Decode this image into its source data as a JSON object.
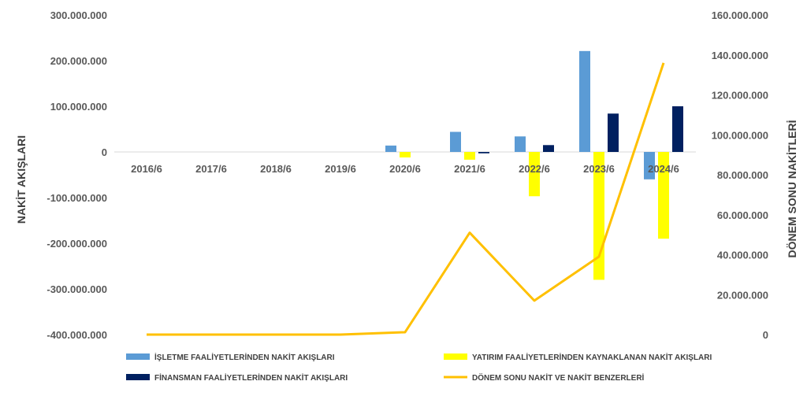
{
  "chart_data": {
    "type": "bar",
    "categories": [
      "2016/6",
      "2017/6",
      "2018/6",
      "2019/6",
      "2020/6",
      "2021/6",
      "2022/6",
      "2023/6",
      "2024/6"
    ],
    "series": [
      {
        "name": "İŞLETME FAALİYETLERİNDEN NAKİT AKIŞLARI",
        "type": "bar",
        "axis": "left",
        "color": "#5B9BD5",
        "values": [
          0,
          0,
          0,
          0,
          14000000,
          44000000,
          34000000,
          221000000,
          -60000000
        ]
      },
      {
        "name": "YATIRIM FAALİYETLERİNDEN KAYNAKLANAN NAKİT AKIŞLARI",
        "type": "bar",
        "axis": "left",
        "color": "#FFFF00",
        "values": [
          0,
          0,
          0,
          0,
          -12000000,
          -17000000,
          -97000000,
          -280000000,
          -190000000
        ]
      },
      {
        "name": "FİNANSMAN FAALİYETLERİNDEN NAKİT AKIŞLARI",
        "type": "bar",
        "axis": "left",
        "color": "#002060",
        "values": [
          0,
          0,
          0,
          0,
          0,
          -3000000,
          15000000,
          84000000,
          100000000
        ]
      },
      {
        "name": "DÖNEM SONU NAKİT VE NAKİT BENZERLERİ",
        "type": "line",
        "axis": "right",
        "color": "#FFC000",
        "values": [
          0,
          0,
          0,
          0,
          1200000,
          51000000,
          17000000,
          39000000,
          136000000
        ]
      }
    ],
    "ylabel": "NAKİT AKIŞLARI",
    "y2label": "DÖNEM SONU NAKİTLERİ",
    "ylim": [
      -400000000,
      300000000
    ],
    "y2lim": [
      0,
      160000000
    ],
    "yticks": [
      300000000,
      200000000,
      100000000,
      0,
      -100000000,
      -200000000,
      -300000000,
      -400000000
    ],
    "yticklabels": [
      "300.000.000",
      "200.000.000",
      "100.000.000",
      "0",
      "-100.000.000",
      "-200.000.000",
      "-300.000.000",
      "-400.000.000"
    ],
    "y2ticks": [
      160000000,
      140000000,
      120000000,
      100000000,
      80000000,
      60000000,
      40000000,
      20000000,
      0
    ],
    "y2ticklabels": [
      "160.000.000",
      "140.000.000",
      "120.000.000",
      "100.000.000",
      "80.000.000",
      "60.000.000",
      "40.000.000",
      "20.000.000",
      "0"
    ],
    "grid": false,
    "legend": "bottom"
  }
}
